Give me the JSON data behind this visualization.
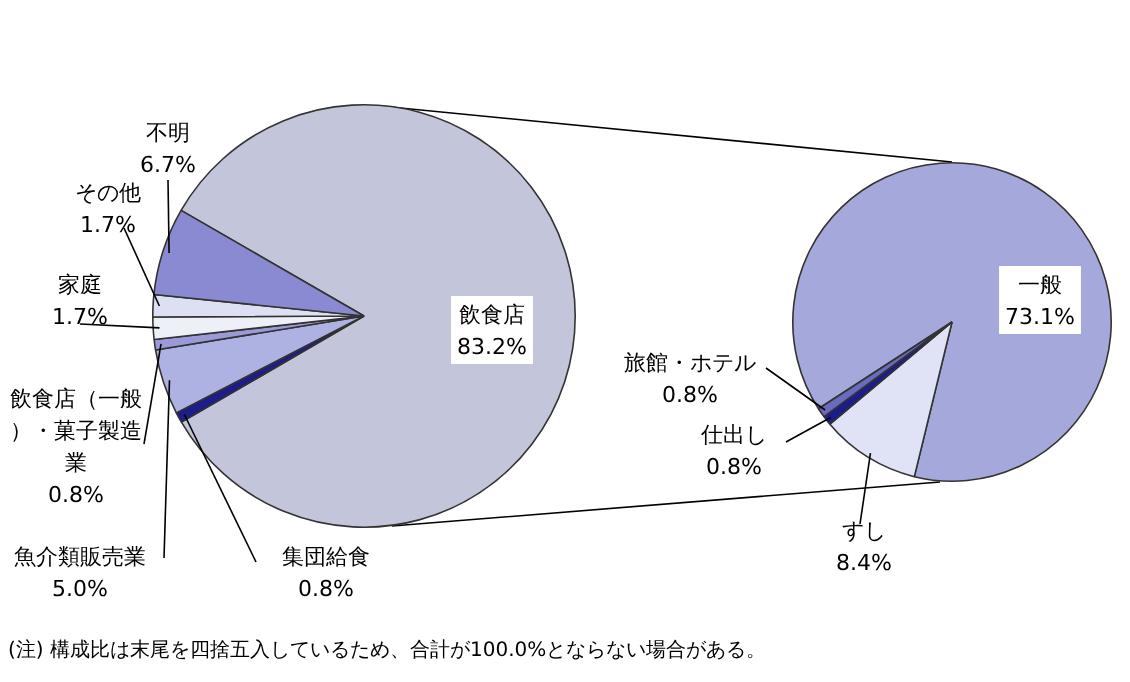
{
  "chart_data": [
    {
      "type": "pie",
      "categories": [
        "飲食店",
        "集団給食",
        "魚介類販売業",
        "飲食店（一般）・菓子製造業",
        "家庭",
        "その他",
        "不明"
      ],
      "values": [
        83.2,
        0.8,
        5.0,
        0.8,
        1.7,
        1.7,
        6.7
      ],
      "value_labels": [
        "83.2%",
        "0.8%",
        "5.0%",
        "0.8%",
        "1.7%",
        "1.7%",
        "6.7%"
      ],
      "colors": [
        "#c3c6da",
        "#1c1c8a",
        "#aeb2e2",
        "#9a9ad8",
        "#eef0f8",
        "#dde0f2",
        "#8a8ad2"
      ],
      "annotations": [
        "(注) 構成比は末尾を四捨五入しているため、合計が100.0%とならない場合がある。"
      ]
    },
    {
      "type": "pie",
      "categories": [
        "一般",
        "すし",
        "仕出し",
        "旅館・ホテル"
      ],
      "values": [
        73.1,
        8.4,
        0.8,
        0.8
      ],
      "value_labels": [
        "73.1%",
        "8.4%",
        "0.8%",
        "0.8%"
      ],
      "colors": [
        "#a4a8da",
        "#e0e3f5",
        "#1c1c8a",
        "#6a6abf"
      ]
    }
  ]
}
